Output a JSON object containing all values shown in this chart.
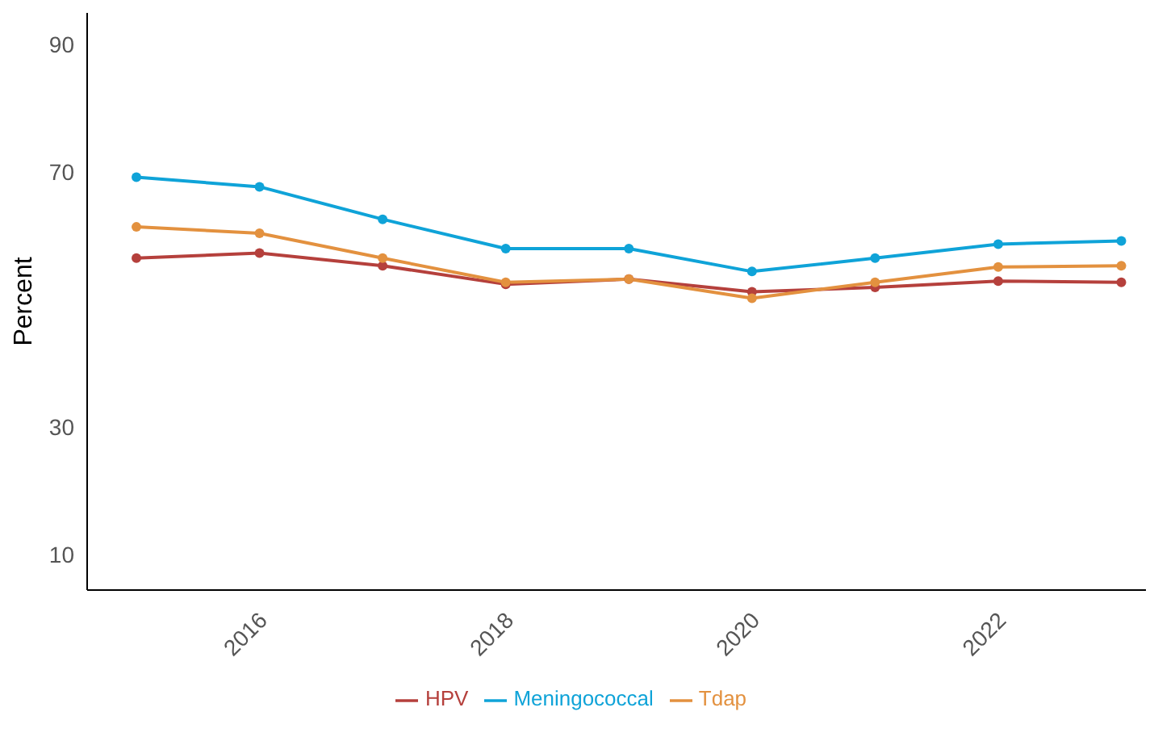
{
  "chart_data": {
    "type": "line",
    "ylabel": "Percent",
    "x": [
      2015,
      2016,
      2017,
      2018,
      2019,
      2020,
      2021,
      2022,
      2023
    ],
    "series": [
      {
        "name": "HPV",
        "color": "#b5403c",
        "values": [
          56.5,
          57.3,
          55.3,
          52.4,
          53.2,
          51.2,
          51.9,
          52.9,
          52.7
        ]
      },
      {
        "name": "Meningococcal",
        "color": "#0fa3d8",
        "values": [
          69.2,
          67.7,
          62.6,
          58.0,
          58.0,
          54.4,
          56.5,
          58.7,
          59.2
        ]
      },
      {
        "name": "Tdap",
        "color": "#e3913f",
        "values": [
          61.4,
          60.4,
          56.5,
          52.7,
          53.2,
          50.2,
          52.7,
          55.1,
          55.3
        ]
      }
    ],
    "xlim": [
      2014.6,
      2023.2
    ],
    "xticks": [
      2016,
      2018,
      2020,
      2022
    ],
    "ylim": [
      4.4,
      95
    ],
    "yticks": [
      10,
      30,
      70,
      90
    ],
    "legend": "bottom",
    "marker": "circle",
    "line_style": "solid",
    "grid": false
  }
}
